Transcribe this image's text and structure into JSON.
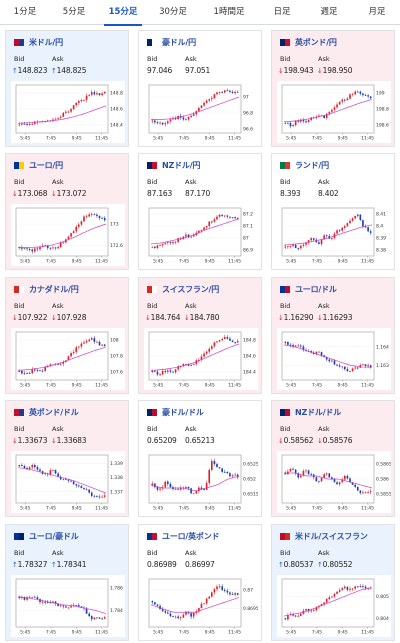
{
  "tabs": [
    {
      "label": "1分足",
      "active": false
    },
    {
      "label": "5分足",
      "active": false
    },
    {
      "label": "15分足",
      "active": true
    },
    {
      "label": "30分足",
      "active": false
    },
    {
      "label": "1時間足",
      "active": false
    },
    {
      "label": "日足",
      "active": false
    },
    {
      "label": "週足",
      "active": false
    },
    {
      "label": "月足",
      "active": false
    }
  ],
  "bid_label": "Bid",
  "ask_label": "Ask",
  "colors": {
    "up_candle": "#e0202e",
    "down_candle": "#1c3fb5",
    "ma": "#d040c8",
    "up_arrow": "#1e5fd1",
    "down_arrow": "#d6203b"
  },
  "cards": [
    {
      "name": "米ドル/円",
      "flag": [
        "#bf0a30",
        "#1f3a93"
      ],
      "direction": "up",
      "bid": "148.823",
      "ask": "148.825",
      "chart_data": {
        "type": "candlestick",
        "x_ticks": [
          "5:45",
          "7:45",
          "9:45",
          "11:45"
        ],
        "y_ticks": [
          "148.8",
          "148.6",
          "148.4"
        ],
        "ylim": [
          148.3,
          148.9
        ],
        "trend": [
          148.4,
          148.42,
          148.41,
          148.45,
          148.43,
          148.48,
          148.5,
          148.55,
          148.62,
          148.68,
          148.74,
          148.8,
          148.78,
          148.82
        ],
        "ma": [
          148.42,
          148.43,
          148.44,
          148.45,
          148.47,
          148.5,
          148.54,
          148.59,
          148.64
        ]
      }
    },
    {
      "name": "豪ドル/円",
      "flag": [
        "#012169",
        "#ffffff"
      ],
      "direction": "flat",
      "bid": "97.046",
      "ask": "97.051",
      "chart_data": {
        "type": "candlestick",
        "x_ticks": [
          "5:45",
          "7:45",
          "9:45",
          "11:45"
        ],
        "y_ticks": [
          "97",
          "96.8",
          "96.6"
        ],
        "ylim": [
          96.55,
          97.15
        ],
        "trend": [
          96.7,
          96.68,
          96.66,
          96.72,
          96.75,
          96.72,
          96.78,
          96.85,
          96.92,
          97.0,
          97.05,
          97.08,
          97.06,
          97.05
        ],
        "ma": [
          96.72,
          96.72,
          96.73,
          96.76,
          96.8,
          96.85,
          96.9,
          96.95,
          97.0
        ]
      }
    },
    {
      "name": "英ポンド/円",
      "flag": [
        "#012169",
        "#c8102e"
      ],
      "direction": "down",
      "bid": "198.943",
      "ask": "198.950",
      "chart_data": {
        "type": "candlestick",
        "x_ticks": [
          "5:45",
          "7:45",
          "9:45",
          "11:45"
        ],
        "y_ticks": [
          "199",
          "198.8",
          "198.6"
        ],
        "ylim": [
          198.5,
          199.1
        ],
        "trend": [
          198.62,
          198.6,
          198.66,
          198.64,
          198.68,
          198.72,
          198.7,
          198.78,
          198.86,
          198.92,
          198.98,
          199.02,
          198.98,
          198.95
        ],
        "ma": [
          198.64,
          198.65,
          198.67,
          198.7,
          198.73,
          198.78,
          198.83,
          198.88,
          198.92
        ]
      }
    },
    {
      "name": "ユーロ/円",
      "flag": [
        "#003399",
        "#ffcc00"
      ],
      "direction": "down",
      "bid": "173.068",
      "ask": "173.072",
      "chart_data": {
        "type": "candlestick",
        "x_ticks": [
          "5:45",
          "7:45",
          "9:45",
          "11:45"
        ],
        "y_ticks": [
          "173",
          "172.6"
        ],
        "ylim": [
          172.4,
          173.3
        ],
        "trend": [
          172.55,
          172.52,
          172.5,
          172.56,
          172.58,
          172.54,
          172.6,
          172.7,
          172.85,
          173.0,
          173.15,
          173.2,
          173.12,
          173.07
        ],
        "ma": [
          172.56,
          172.56,
          172.57,
          172.6,
          172.66,
          172.74,
          172.84,
          172.93,
          173.0
        ]
      }
    },
    {
      "name": "NZドル/円",
      "flag": [
        "#012169",
        "#c8102e"
      ],
      "direction": "flat",
      "bid": "87.163",
      "ask": "87.170",
      "chart_data": {
        "type": "candlestick",
        "x_ticks": [
          "5:45",
          "7:45",
          "9:45",
          "11:45"
        ],
        "y_ticks": [
          "87.2",
          "87.1",
          "87",
          "86.9"
        ],
        "ylim": [
          86.85,
          87.25
        ],
        "trend": [
          86.92,
          86.94,
          86.96,
          86.95,
          86.99,
          87.02,
          87.0,
          87.06,
          87.1,
          87.14,
          87.18,
          87.2,
          87.17,
          87.16
        ],
        "ma": [
          86.95,
          86.96,
          86.98,
          87.0,
          87.03,
          87.07,
          87.1,
          87.13,
          87.16
        ]
      }
    },
    {
      "name": "ランド/円",
      "flag": [
        "#007a4d",
        "#de3831"
      ],
      "direction": "flat",
      "bid": "8.393",
      "ask": "8.402",
      "chart_data": {
        "type": "candlestick",
        "x_ticks": [
          "5:45",
          "7:45",
          "9:45",
          "11:45"
        ],
        "y_ticks": [
          "8.41",
          "8.4",
          "8.39",
          "8.38"
        ],
        "ylim": [
          8.375,
          8.415
        ],
        "trend": [
          8.382,
          8.384,
          8.381,
          8.386,
          8.389,
          8.385,
          8.392,
          8.39,
          8.396,
          8.4,
          8.405,
          8.409,
          8.399,
          8.395
        ],
        "ma": [
          8.384,
          8.385,
          8.386,
          8.388,
          8.39,
          8.393,
          8.396,
          8.399,
          8.401
        ]
      }
    },
    {
      "name": "カナダドル/円",
      "flag": [
        "#d52b1e",
        "#ffffff"
      ],
      "direction": "down",
      "bid": "107.922",
      "ask": "107.928",
      "chart_data": {
        "type": "candlestick",
        "x_ticks": [
          "5:45",
          "7:45",
          "9:45",
          "11:45"
        ],
        "y_ticks": [
          "108",
          "107.8",
          "107.6"
        ],
        "ylim": [
          107.5,
          108.1
        ],
        "trend": [
          107.6,
          107.58,
          107.62,
          107.6,
          107.65,
          107.7,
          107.68,
          107.75,
          107.84,
          107.92,
          107.98,
          108.02,
          107.96,
          107.92
        ],
        "ma": [
          107.62,
          107.63,
          107.65,
          107.68,
          107.72,
          107.77,
          107.82,
          107.87,
          107.91
        ]
      }
    },
    {
      "name": "スイスフラン/円",
      "flag": [
        "#d52b1e",
        "#ffffff"
      ],
      "direction": "down",
      "bid": "184.764",
      "ask": "184.780",
      "chart_data": {
        "type": "candlestick",
        "x_ticks": [
          "5:45",
          "7:45",
          "9:45",
          "11:45"
        ],
        "y_ticks": [
          "184.8",
          "184.6",
          "184.4"
        ],
        "ylim": [
          184.3,
          184.9
        ],
        "trend": [
          184.4,
          184.38,
          184.42,
          184.4,
          184.46,
          184.5,
          184.48,
          184.56,
          184.64,
          184.72,
          184.8,
          184.84,
          184.79,
          184.77
        ],
        "ma": [
          184.42,
          184.43,
          184.45,
          184.48,
          184.52,
          184.58,
          184.64,
          184.7,
          184.75
        ]
      }
    },
    {
      "name": "ユーロ/ドル",
      "flag": [
        "#003399",
        "#bf0a30"
      ],
      "direction": "down",
      "bid": "1.16290",
      "ask": "1.16293",
      "chart_data": {
        "type": "candlestick",
        "x_ticks": [
          "5:45",
          "7:45",
          "9:45",
          "11:45"
        ],
        "y_ticks": [
          "1.164",
          "1.163"
        ],
        "ylim": [
          1.1622,
          1.1648
        ],
        "trend": [
          1.1642,
          1.164,
          1.1641,
          1.1638,
          1.1636,
          1.1637,
          1.1634,
          1.1632,
          1.163,
          1.1628,
          1.1627,
          1.1629,
          1.163,
          1.1629
        ],
        "ma": [
          1.1641,
          1.164,
          1.1638,
          1.1636,
          1.1634,
          1.1632,
          1.163,
          1.1629,
          1.1629
        ]
      }
    },
    {
      "name": "英ポンド/ドル",
      "flag": [
        "#c8102e",
        "#1f3a93"
      ],
      "direction": "down",
      "bid": "1.33673",
      "ask": "1.33683",
      "chart_data": {
        "type": "candlestick",
        "x_ticks": [
          "5:45",
          "7:45",
          "9:45",
          "11:45"
        ],
        "y_ticks": [
          "1.339",
          "1.338",
          "1.337"
        ],
        "ylim": [
          1.3362,
          1.3396
        ],
        "trend": [
          1.3388,
          1.3386,
          1.3389,
          1.3384,
          1.3382,
          1.3385,
          1.338,
          1.3378,
          1.3376,
          1.3374,
          1.3372,
          1.3368,
          1.3366,
          1.3367
        ],
        "ma": [
          1.3387,
          1.3386,
          1.3384,
          1.3382,
          1.338,
          1.3378,
          1.3375,
          1.3372,
          1.3369
        ]
      }
    },
    {
      "name": "豪ドル/ドル",
      "flag": [
        "#012169",
        "#bf0a30"
      ],
      "direction": "flat",
      "bid": "0.65209",
      "ask": "0.65213",
      "chart_data": {
        "type": "candlestick",
        "x_ticks": [
          "5:45",
          "7:45",
          "9:45",
          "11:45"
        ],
        "y_ticks": [
          "0.6525",
          "0.652",
          "0.6515"
        ],
        "ylim": [
          0.6512,
          0.6528
        ],
        "trend": [
          0.6518,
          0.6516,
          0.6519,
          0.6517,
          0.6516,
          0.6518,
          0.6515,
          0.6517,
          0.6516,
          0.6526,
          0.6524,
          0.6522,
          0.6521,
          0.6521
        ],
        "ma": [
          0.6518,
          0.6517,
          0.6517,
          0.6517,
          0.6516,
          0.6517,
          0.6518,
          0.652,
          0.6521
        ]
      }
    },
    {
      "name": "NZドル/ドル",
      "flag": [
        "#012169",
        "#bf0a30"
      ],
      "direction": "down",
      "bid": "0.58562",
      "ask": "0.58576",
      "chart_data": {
        "type": "candlestick",
        "x_ticks": [
          "5:45",
          "7:45",
          "9:45",
          "11:45"
        ],
        "y_ticks": [
          "0.5865",
          "0.586",
          "0.5855"
        ],
        "ylim": [
          0.5852,
          0.5868
        ],
        "trend": [
          0.5862,
          0.5864,
          0.586,
          0.5863,
          0.5861,
          0.5859,
          0.5862,
          0.586,
          0.5858,
          0.5861,
          0.5859,
          0.5856,
          0.5855,
          0.5856
        ],
        "ma": [
          0.5862,
          0.5862,
          0.5861,
          0.5861,
          0.586,
          0.586,
          0.5859,
          0.5858,
          0.5857
        ]
      }
    },
    {
      "name": "ユーロ/豪ドル",
      "flag": [
        "#003399",
        "#012169"
      ],
      "direction": "up",
      "bid": "1.78327",
      "ask": "1.78341",
      "chart_data": {
        "type": "candlestick",
        "x_ticks": [
          "5:45",
          "7:45",
          "9:45",
          "11:45"
        ],
        "y_ticks": [
          "1.786",
          "1.784"
        ],
        "ylim": [
          1.7825,
          1.7868
        ],
        "trend": [
          1.7852,
          1.785,
          1.7853,
          1.7849,
          1.7846,
          1.7848,
          1.7844,
          1.7842,
          1.7845,
          1.7843,
          1.784,
          1.7832,
          1.7834,
          1.7833
        ],
        "ma": [
          1.7852,
          1.7851,
          1.7849,
          1.7847,
          1.7845,
          1.7844,
          1.7842,
          1.784,
          1.7837
        ]
      }
    },
    {
      "name": "ユーロ/英ポンド",
      "flag": [
        "#003399",
        "#c8102e"
      ],
      "direction": "flat",
      "bid": "0.86989",
      "ask": "0.86997",
      "chart_data": {
        "type": "candlestick",
        "x_ticks": [
          "5:45",
          "7:45",
          "9:45",
          "11:45"
        ],
        "y_ticks": [
          "0.87",
          "0.8695"
        ],
        "ylim": [
          0.869,
          0.8703
        ],
        "trend": [
          0.8697,
          0.8695,
          0.8694,
          0.8693,
          0.8692,
          0.8694,
          0.8693,
          0.8695,
          0.8697,
          0.8699,
          0.8701,
          0.87,
          0.8699,
          0.8699
        ],
        "ma": [
          0.8696,
          0.8695,
          0.8694,
          0.8694,
          0.8694,
          0.8695,
          0.8696,
          0.8697,
          0.8698
        ]
      }
    },
    {
      "name": "米ドル/スイスフラン",
      "flag": [
        "#bf0a30",
        "#d52b1e"
      ],
      "direction": "up",
      "bid": "0.80537",
      "ask": "0.80552",
      "chart_data": {
        "type": "candlestick",
        "x_ticks": [
          "5:45",
          "7:45",
          "9:45",
          "11:45"
        ],
        "y_ticks": [
          "0.805",
          "0.804"
        ],
        "ylim": [
          0.8036,
          0.8058
        ],
        "trend": [
          0.804,
          0.8042,
          0.8041,
          0.8044,
          0.8043,
          0.8046,
          0.8048,
          0.805,
          0.8052,
          0.8054,
          0.8053,
          0.8055,
          0.8054,
          0.8054
        ],
        "ma": [
          0.8041,
          0.8042,
          0.8043,
          0.8045,
          0.8047,
          0.8049,
          0.8051,
          0.8053,
          0.8054
        ]
      }
    }
  ]
}
